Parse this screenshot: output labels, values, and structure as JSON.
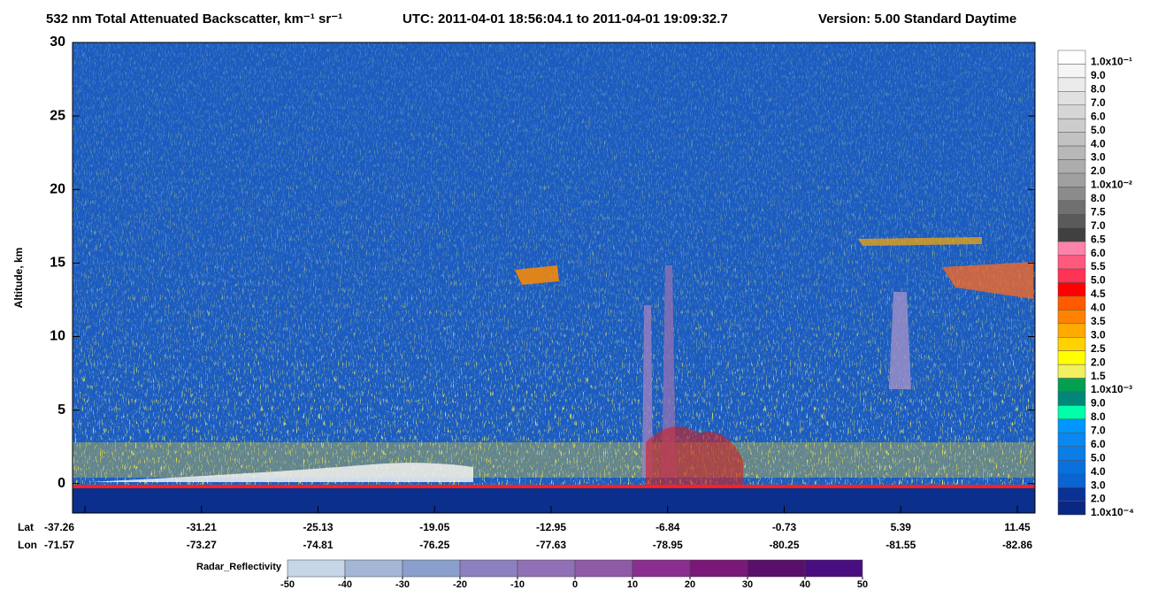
{
  "chart_data": {
    "type": "curtain",
    "title": "532 nm Total Attenuated Backscatter, km⁻¹ sr⁻¹",
    "time_range": "UTC:  2011-04-01 18:56:04.1  to  2011-04-01 19:09:32.7",
    "version": "Version: 5.00  Standard  Daytime",
    "y_label": "Altitude, km",
    "ylim": [
      -2,
      30
    ],
    "yticks": [
      0,
      5,
      10,
      15,
      20,
      25,
      30
    ],
    "lat_label": "Lat",
    "lon_label": "Lon",
    "lat": [
      -37.26,
      -31.21,
      -25.13,
      -19.05,
      -12.95,
      -6.84,
      -0.73,
      5.39,
      11.45
    ],
    "lon": [
      -71.57,
      -73.27,
      -74.81,
      -76.25,
      -77.63,
      -78.95,
      -80.25,
      -81.55,
      -82.86
    ],
    "colorbar": [
      {
        "value": 0.1,
        "label": "1.0x10⁻¹",
        "color": "#ffffff"
      },
      {
        "value": 0.09,
        "label": "9.0",
        "color": "#f5f5f5"
      },
      {
        "value": 0.08,
        "label": "8.0",
        "color": "#ebebeb"
      },
      {
        "value": 0.07,
        "label": "7.0",
        "color": "#e0e0e0"
      },
      {
        "value": 0.06,
        "label": "6.0",
        "color": "#d6d6d6"
      },
      {
        "value": 0.05,
        "label": "5.0",
        "color": "#cccccc"
      },
      {
        "value": 0.04,
        "label": "4.0",
        "color": "#c2c2c2"
      },
      {
        "value": 0.03,
        "label": "3.0",
        "color": "#b8b8b8"
      },
      {
        "value": 0.02,
        "label": "2.0",
        "color": "#adadad"
      },
      {
        "value": 0.01,
        "label": "1.0x10⁻²",
        "color": "#a0a0a0"
      },
      {
        "value": 0.008,
        "label": "8.0",
        "color": "#8c8c8c"
      },
      {
        "value": 0.0075,
        "label": "7.5",
        "color": "#707070"
      },
      {
        "value": 0.007,
        "label": "7.0",
        "color": "#5a5a5a"
      },
      {
        "value": 0.0065,
        "label": "6.5",
        "color": "#404040"
      },
      {
        "value": 0.006,
        "label": "6.0",
        "color": "#ff82a8"
      },
      {
        "value": 0.0055,
        "label": "5.5",
        "color": "#ff5a7d"
      },
      {
        "value": 0.005,
        "label": "5.0",
        "color": "#ff3355"
      },
      {
        "value": 0.0045,
        "label": "4.5",
        "color": "#ff0000"
      },
      {
        "value": 0.004,
        "label": "4.0",
        "color": "#ff5a00"
      },
      {
        "value": 0.0035,
        "label": "3.5",
        "color": "#ff8200"
      },
      {
        "value": 0.003,
        "label": "3.0",
        "color": "#ffaa00"
      },
      {
        "value": 0.0025,
        "label": "2.5",
        "color": "#ffd200"
      },
      {
        "value": 0.002,
        "label": "2.0",
        "color": "#ffff00"
      },
      {
        "value": 0.0015,
        "label": "1.5",
        "color": "#f0f060"
      },
      {
        "value": 0.001,
        "label": "1.0x10⁻³",
        "color": "#00a050"
      },
      {
        "value": 0.0009,
        "label": "9.0",
        "color": "#00877a"
      },
      {
        "value": 0.0008,
        "label": "8.0",
        "color": "#00ffaa"
      },
      {
        "value": 0.0007,
        "label": "7.0",
        "color": "#0096ff"
      },
      {
        "value": 0.0006,
        "label": "6.0",
        "color": "#0a87f0"
      },
      {
        "value": 0.0005,
        "label": "5.0",
        "color": "#0a7de6"
      },
      {
        "value": 0.0004,
        "label": "4.0",
        "color": "#0a70dc"
      },
      {
        "value": 0.0003,
        "label": "3.0",
        "color": "#0a64d2"
      },
      {
        "value": 0.0002,
        "label": "2.0",
        "color": "#0a3296"
      },
      {
        "value": 0.0001,
        "label": "1.0x10⁻⁴",
        "color": "#0a2882"
      }
    ],
    "radar_label": "Radar_Reflectivity",
    "radar_ticks": [
      -50,
      -40,
      -30,
      -20,
      -10,
      0,
      10,
      20,
      30,
      40,
      50
    ],
    "radar_colors": [
      "#c6d6e8",
      "#a3b6d6",
      "#8a9fcb",
      "#8c80c0",
      "#9170b5",
      "#8f5aa6",
      "#8a2f8f",
      "#7a1878",
      "#5a0f6a",
      "#4a0d80"
    ]
  }
}
